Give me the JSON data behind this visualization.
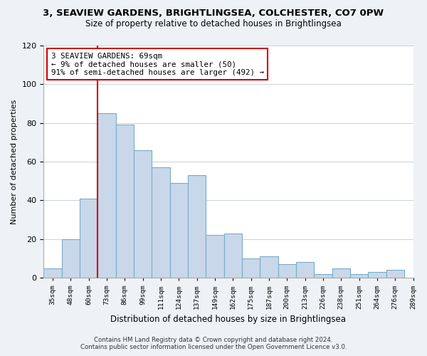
{
  "title": "3, SEAVIEW GARDENS, BRIGHTLINGSEA, COLCHESTER, CO7 0PW",
  "subtitle": "Size of property relative to detached houses in Brightlingsea",
  "xlabel": "Distribution of detached houses by size in Brightlingsea",
  "ylabel": "Number of detached properties",
  "bar_color": "#c8d8ea",
  "bar_edge_color": "#7aaac8",
  "bin_labels": [
    "35sqm",
    "48sqm",
    "60sqm",
    "73sqm",
    "86sqm",
    "99sqm",
    "111sqm",
    "124sqm",
    "137sqm",
    "149sqm",
    "162sqm",
    "175sqm",
    "187sqm",
    "200sqm",
    "213sqm",
    "226sqm",
    "238sqm",
    "251sqm",
    "264sqm",
    "276sqm",
    "289sqm"
  ],
  "bar_heights": [
    5,
    20,
    41,
    85,
    79,
    66,
    57,
    49,
    53,
    22,
    23,
    10,
    11,
    7,
    8,
    2,
    5,
    2,
    3,
    4
  ],
  "ylim": [
    0,
    120
  ],
  "yticks": [
    0,
    20,
    40,
    60,
    80,
    100,
    120
  ],
  "vline_index": 3,
  "marker_label_line1": "3 SEAVIEW GARDENS: 69sqm",
  "marker_label_line2": "← 9% of detached houses are smaller (50)",
  "marker_label_line3": "91% of semi-detached houses are larger (492) →",
  "annotation_box_facecolor": "#ffffff",
  "annotation_box_edgecolor": "#cc0000",
  "vline_color": "#cc0000",
  "footer_line1": "Contains HM Land Registry data © Crown copyright and database right 2024.",
  "footer_line2": "Contains public sector information licensed under the Open Government Licence v3.0.",
  "background_color": "#eef2f7",
  "plot_background": "#ffffff",
  "grid_color": "#c8d0d8"
}
